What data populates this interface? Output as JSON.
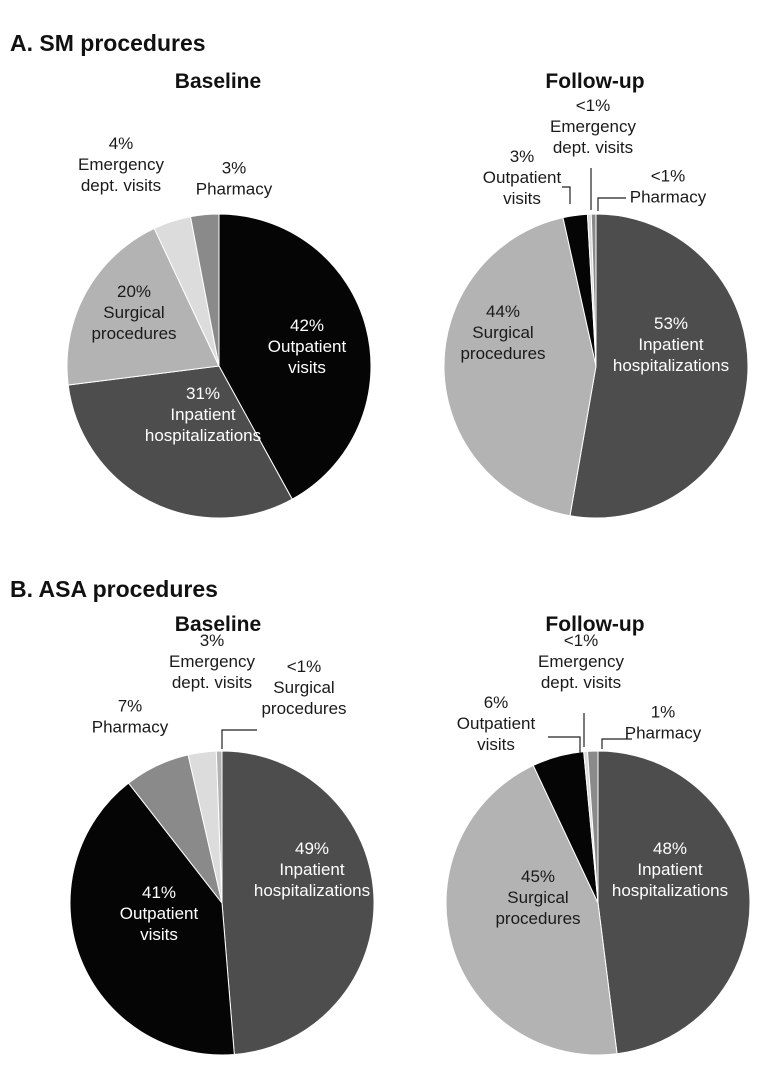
{
  "sections": {
    "a": {
      "title": "A. SM procedures"
    },
    "b": {
      "title": "B. ASA procedures"
    }
  },
  "colors": {
    "outpatient": "#050505",
    "inpatient": "#4d4d4d",
    "surgical": "#b3b3b3",
    "emergency": "#dcdcdc",
    "pharmacy": "#8a8a8a",
    "edge": "#ffffff"
  },
  "chart_data": [
    {
      "id": "sm-baseline",
      "type": "pie",
      "section": "A. SM procedures",
      "title": "Baseline",
      "slices": [
        {
          "key": "outpatient",
          "name": "Outpatient visits",
          "value": 42,
          "label": [
            "42%",
            "Outpatient",
            "visits"
          ]
        },
        {
          "key": "inpatient",
          "name": "Inpatient hospitalizations",
          "value": 31,
          "label": [
            "31%",
            "Inpatient",
            "hospitalizations"
          ]
        },
        {
          "key": "surgical",
          "name": "Surgical procedures",
          "value": 20,
          "label": [
            "20%",
            "Surgical",
            "procedures"
          ]
        },
        {
          "key": "emergency",
          "name": "Emergency dept. visits",
          "value": 4,
          "label": [
            "4%",
            "Emergency",
            "dept. visits"
          ]
        },
        {
          "key": "pharmacy",
          "name": "Pharmacy",
          "value": 3,
          "label": [
            "3%",
            "Pharmacy"
          ]
        }
      ]
    },
    {
      "id": "sm-followup",
      "type": "pie",
      "section": "A. SM procedures",
      "title": "Follow-up",
      "slices": [
        {
          "key": "inpatient",
          "name": "Inpatient hospitalizations",
          "value": 53,
          "label": [
            "53%",
            "Inpatient",
            "hospitalizations"
          ]
        },
        {
          "key": "surgical",
          "name": "Surgical procedures",
          "value": 44,
          "label": [
            "44%",
            "Surgical",
            "procedures"
          ]
        },
        {
          "key": "outpatient",
          "name": "Outpatient visits",
          "value": 2.6,
          "label": [
            "3%",
            "Outpatient",
            "visits"
          ]
        },
        {
          "key": "emergency",
          "name": "Emergency dept. visits",
          "value": 0.4,
          "label": [
            "<1%",
            "Emergency",
            "dept. visits"
          ]
        },
        {
          "key": "pharmacy",
          "name": "Pharmacy",
          "value": 0.5,
          "label": [
            "<1%",
            "Pharmacy"
          ]
        }
      ]
    },
    {
      "id": "asa-baseline",
      "type": "pie",
      "section": "B. ASA procedures",
      "title": "Baseline",
      "slices": [
        {
          "key": "inpatient",
          "name": "Inpatient hospitalizations",
          "value": 49,
          "label": [
            "49%",
            "Inpatient",
            "hospitalizations"
          ]
        },
        {
          "key": "outpatient",
          "name": "Outpatient visits",
          "value": 41,
          "label": [
            "41%",
            "Outpatient",
            "visits"
          ]
        },
        {
          "key": "pharmacy",
          "name": "Pharmacy",
          "value": 7,
          "label": [
            "7%",
            "Pharmacy"
          ]
        },
        {
          "key": "emergency",
          "name": "Emergency dept. visits",
          "value": 3,
          "label": [
            "3%",
            "Emergency",
            "dept. visits"
          ]
        },
        {
          "key": "surgical",
          "name": "Surgical procedures",
          "value": 0.6,
          "label": [
            "<1%",
            "Surgical",
            "procedures"
          ]
        }
      ]
    },
    {
      "id": "asa-followup",
      "type": "pie",
      "section": "B. ASA procedures",
      "title": "Follow-up",
      "slices": [
        {
          "key": "inpatient",
          "name": "Inpatient hospitalizations",
          "value": 48,
          "label": [
            "48%",
            "Inpatient",
            "hospitalizations"
          ]
        },
        {
          "key": "surgical",
          "name": "Surgical procedures",
          "value": 45,
          "label": [
            "45%",
            "Surgical",
            "procedures"
          ]
        },
        {
          "key": "outpatient",
          "name": "Outpatient visits",
          "value": 5.5,
          "label": [
            "6%",
            "Outpatient",
            "visits"
          ]
        },
        {
          "key": "emergency",
          "name": "Emergency dept. visits",
          "value": 0.4,
          "label": [
            "<1%",
            "Emergency",
            "dept. visits"
          ]
        },
        {
          "key": "pharmacy",
          "name": "Pharmacy",
          "value": 1.1,
          "label": [
            "1%",
            "Pharmacy"
          ]
        }
      ]
    }
  ]
}
